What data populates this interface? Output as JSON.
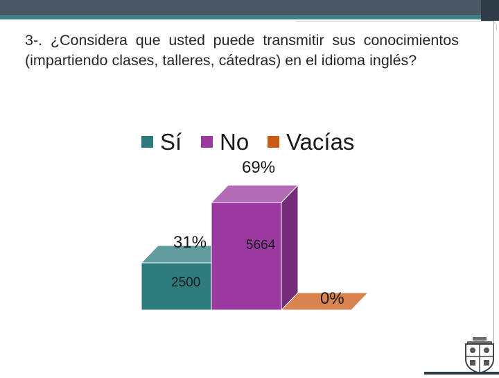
{
  "slide": {
    "question": "3-. ¿Considera que usted puede transmitir sus conocimientos (impartiendo clases, talleres, cátedras) en el idioma inglés?"
  },
  "colors": {
    "header": "#4a5866",
    "accent": "#3f7f88",
    "si": "#2e7b7e",
    "no": "#9a3aa0",
    "vacias": "#cc5a17"
  },
  "chart_data": {
    "type": "bar",
    "categories": [
      "Sí",
      "No",
      "Vacías"
    ],
    "values": [
      2500,
      5664,
      0
    ],
    "percent_labels": [
      "31%",
      "69%",
      "0%"
    ],
    "count_labels": [
      "2500",
      "5664",
      ""
    ],
    "legend": [
      "Sí",
      "No",
      "Vacías"
    ],
    "legend_position": "top",
    "ylim": [
      0,
      5664
    ],
    "grid": false
  }
}
